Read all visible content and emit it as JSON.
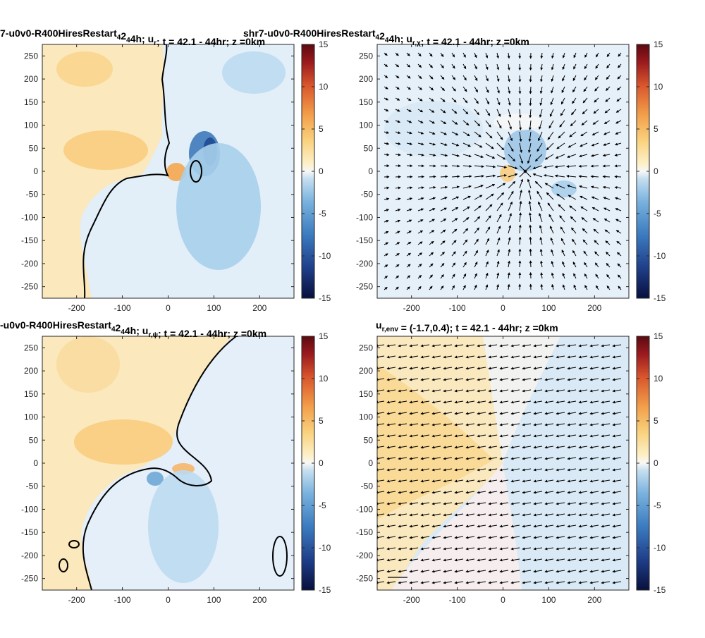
{
  "figure": {
    "panels": [
      {
        "title_main": "7-u0v0-R400HiresRestart",
        "title_sub1": "4",
        "title_mid": "2",
        "title_sub2": "4",
        "title_tail": "4h;   u",
        "title_var_sub": "r",
        "title_after": ";  t = 42.1 - 44hr;  z =0km",
        "has_vectors": false,
        "has_contour": true,
        "field": "radial"
      },
      {
        "title_main": "shr7-u0v0-R400HiresRestart",
        "title_sub1": "4",
        "title_mid": "2",
        "title_sub2": "4",
        "title_tail": "4h;   u",
        "title_var_sub": "r,χ",
        "title_after": ";  t = 42.1 - 44hr;  z =0km",
        "has_vectors": true,
        "has_contour": false,
        "field": "divergent"
      },
      {
        "title_main": "-u0v0-R400HiresRestart",
        "title_sub1": "4",
        "title_mid": "2",
        "title_sub2": "4",
        "title_tail": "4h;   u",
        "title_var_sub": "r,ψ",
        "title_after": ";  t = 42.1 - 44hr;  z =0km",
        "has_vectors": false,
        "has_contour": true,
        "field": "rotational"
      },
      {
        "title_main": "",
        "title_sub1": "",
        "title_mid": "",
        "title_sub2": "",
        "title_tail": "u",
        "title_var_sub": "r,env",
        "title_after": " = (-1.7,0.4);  t = 42.1 - 44hr;  z =0km",
        "has_vectors": true,
        "has_contour": false,
        "field": "environment"
      }
    ]
  },
  "chart_data": {
    "type": "heatmap",
    "x_ticks": [
      -200,
      -100,
      0,
      100,
      200
    ],
    "y_ticks": [
      250,
      200,
      150,
      100,
      50,
      0,
      -50,
      -100,
      -150,
      -200,
      -250
    ],
    "xlim": [
      -275,
      275
    ],
    "ylim": [
      -275,
      275
    ],
    "colorbar_ticks": [
      15,
      10,
      5,
      0,
      -5,
      -10,
      -15
    ],
    "clim": [
      -15,
      15
    ],
    "colormap": [
      "#08103d",
      "#1f3f8a",
      "#3b7bbf",
      "#79b2de",
      "#c4def0",
      "#eef4fa",
      "#fdf2d0",
      "#f9d27e",
      "#f3a04b",
      "#d8552c",
      "#9a1a1e",
      "#5c0a10"
    ]
  }
}
